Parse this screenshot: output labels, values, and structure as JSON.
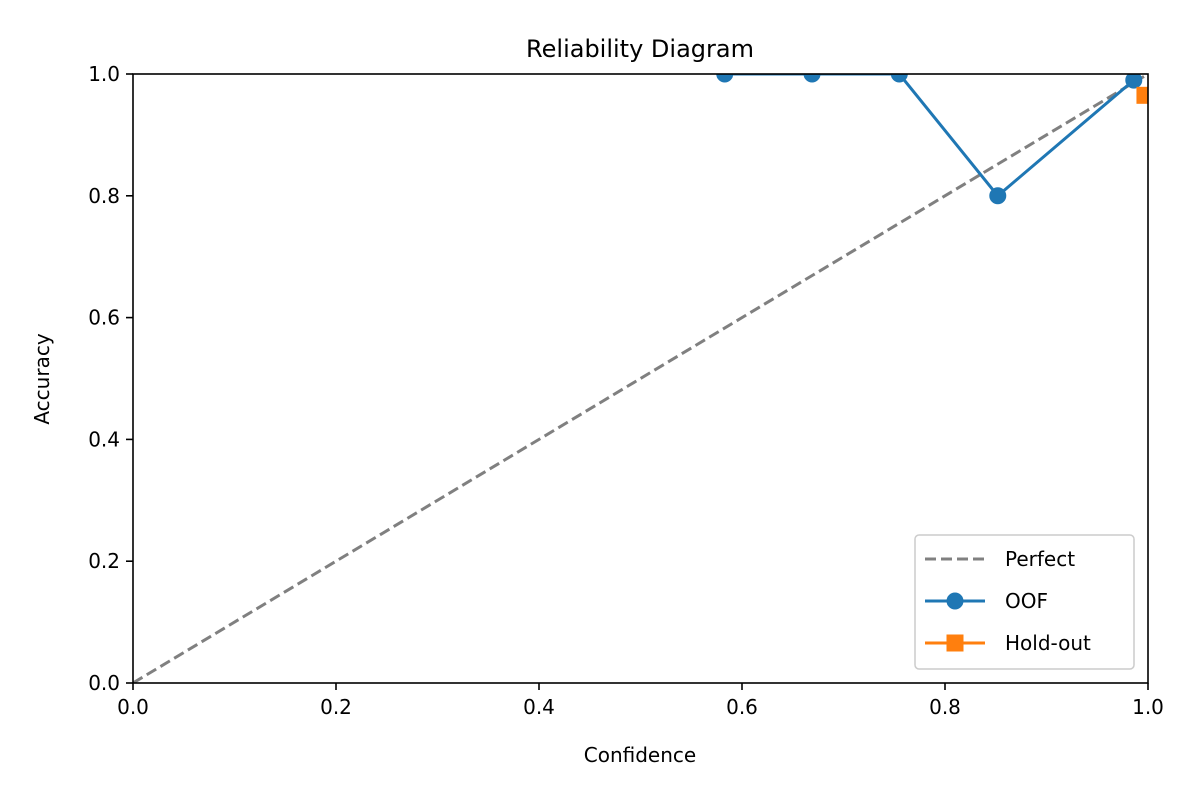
{
  "chart_data": {
    "type": "line",
    "title": "Reliability Diagram",
    "xlabel": "Confidence",
    "ylabel": "Accuracy",
    "xlim": [
      0.0,
      1.0
    ],
    "ylim": [
      0.0,
      1.0
    ],
    "x_ticks": [
      0.0,
      0.2,
      0.4,
      0.6,
      0.8,
      1.0
    ],
    "y_ticks": [
      0.0,
      0.2,
      0.4,
      0.6,
      0.8,
      1.0
    ],
    "x_tick_labels": [
      "0.0",
      "0.2",
      "0.4",
      "0.6",
      "0.8",
      "1.0"
    ],
    "y_tick_labels": [
      "0.0",
      "0.2",
      "0.4",
      "0.6",
      "0.8",
      "1.0"
    ],
    "grid": false,
    "legend_position": "lower-right",
    "series": [
      {
        "name": "Perfect",
        "style": "dashed",
        "marker": "none",
        "color": "#808080",
        "x": [
          0.0,
          1.0
        ],
        "y": [
          0.0,
          1.0
        ]
      },
      {
        "name": "OOF",
        "style": "solid",
        "marker": "circle",
        "color": "#1f77b4",
        "x": [
          0.583,
          0.669,
          0.755,
          0.852,
          0.986
        ],
        "y": [
          1.0,
          1.0,
          1.0,
          0.8,
          0.99
        ]
      },
      {
        "name": "Hold-out",
        "style": "solid",
        "marker": "square",
        "color": "#ff7f0e",
        "x": [
          0.997
        ],
        "y": [
          0.965
        ]
      }
    ]
  }
}
